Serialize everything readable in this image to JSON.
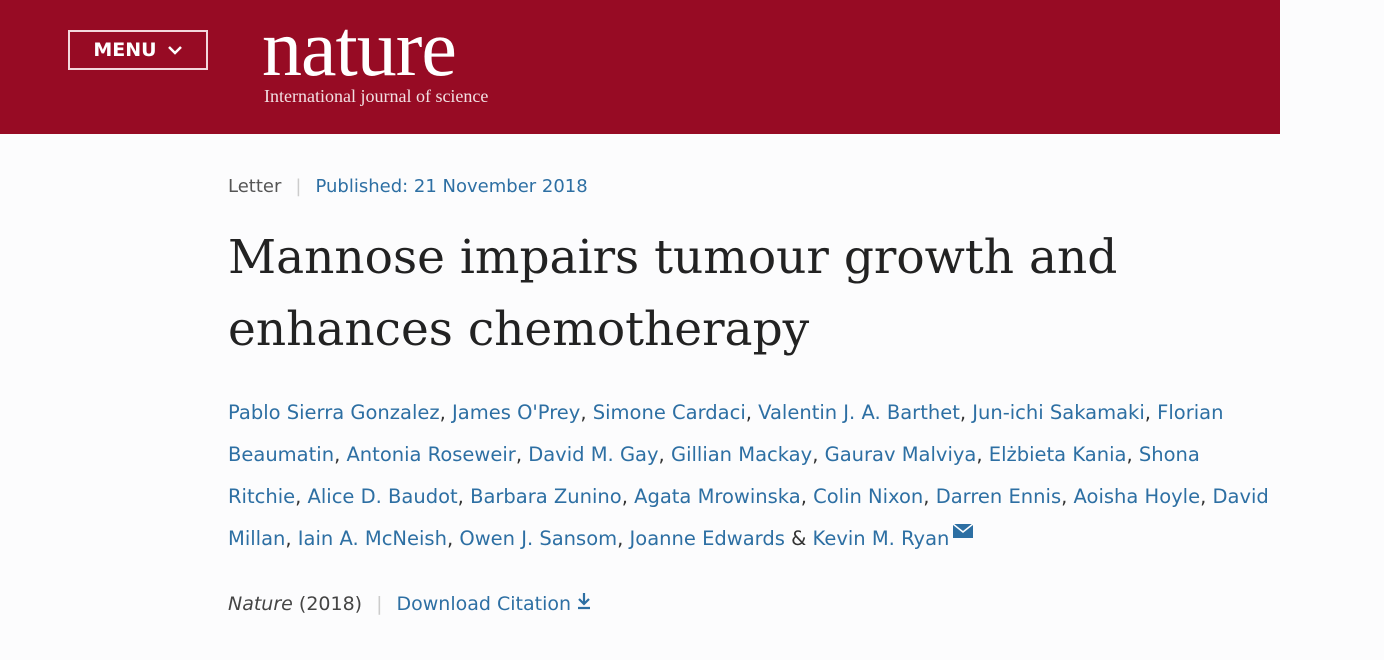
{
  "header": {
    "menu": "MENU",
    "logo": "nature",
    "tagline": "International journal of science"
  },
  "article": {
    "type": "Letter",
    "published": "Published: 21 November 2018",
    "title": "Mannose impairs tumour growth and enhances chemotherapy",
    "authors": [
      "Pablo Sierra Gonzalez",
      "James O'Prey",
      "Simone Cardaci",
      "Valentin J. A. Barthet",
      "Jun-ichi Sakamaki",
      "Florian Beaumatin",
      "Antonia Roseweir",
      "David M. Gay",
      "Gillian Mackay",
      "Gaurav Malviya",
      "Elżbieta Kania",
      "Shona Ritchie",
      "Alice D. Baudot",
      "Barbara Zunino",
      "Agata Mrowinska",
      "Colin Nixon",
      "Darren Ennis",
      "Aoisha Hoyle",
      "David Millan",
      "Iain A. McNeish",
      "Owen J. Sansom",
      "Joanne Edwards",
      "Kevin M. Ryan"
    ],
    "author_separator": ",",
    "last_separator": "&",
    "journal": "Nature",
    "year": "(2018)",
    "download": "Download Citation"
  }
}
